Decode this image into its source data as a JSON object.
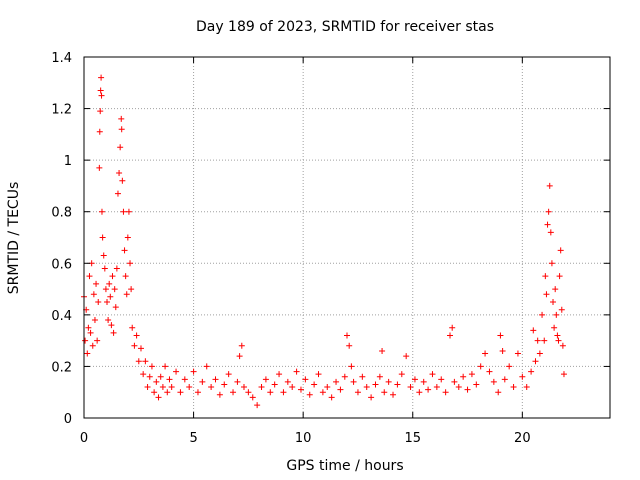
{
  "chart_data": {
    "type": "scatter",
    "title": "Day 189 of 2023, SRMTID for receiver stas",
    "xlabel": "GPS time / hours",
    "ylabel": "SRMTID / TECUs",
    "xlim": [
      0,
      24
    ],
    "ylim": [
      0,
      1.4
    ],
    "xticks": [
      0,
      5,
      10,
      15,
      20
    ],
    "xtick_labels": [
      "0",
      "5",
      "10",
      "15",
      "20"
    ],
    "yticks": [
      0,
      0.2,
      0.4,
      0.6,
      0.8,
      1,
      1.2,
      1.4
    ],
    "ytick_labels": [
      "0",
      "0.2",
      "0.4",
      "0.6",
      "0.8",
      "1",
      "1.2",
      "1.4"
    ],
    "grid": true,
    "marker": "+",
    "series": [
      {
        "name": "SRMTID",
        "color": "#ff0000",
        "points": [
          [
            0.0,
            0.47
          ],
          [
            0.05,
            0.3
          ],
          [
            0.1,
            0.42
          ],
          [
            0.15,
            0.25
          ],
          [
            0.2,
            0.35
          ],
          [
            0.25,
            0.55
          ],
          [
            0.3,
            0.33
          ],
          [
            0.35,
            0.6
          ],
          [
            0.4,
            0.28
          ],
          [
            0.45,
            0.48
          ],
          [
            0.5,
            0.38
          ],
          [
            0.55,
            0.52
          ],
          [
            0.6,
            0.3
          ],
          [
            0.65,
            0.45
          ],
          [
            0.7,
            0.97
          ],
          [
            0.72,
            1.11
          ],
          [
            0.74,
            1.19
          ],
          [
            0.76,
            1.27
          ],
          [
            0.78,
            1.32
          ],
          [
            0.8,
            1.25
          ],
          [
            0.82,
            0.8
          ],
          [
            0.85,
            0.7
          ],
          [
            0.9,
            0.63
          ],
          [
            0.95,
            0.58
          ],
          [
            1.0,
            0.5
          ],
          [
            1.05,
            0.45
          ],
          [
            1.1,
            0.38
          ],
          [
            1.15,
            0.52
          ],
          [
            1.2,
            0.47
          ],
          [
            1.25,
            0.36
          ],
          [
            1.3,
            0.55
          ],
          [
            1.35,
            0.33
          ],
          [
            1.4,
            0.5
          ],
          [
            1.45,
            0.43
          ],
          [
            1.5,
            0.58
          ],
          [
            1.55,
            0.87
          ],
          [
            1.6,
            0.95
          ],
          [
            1.65,
            1.05
          ],
          [
            1.7,
            1.16
          ],
          [
            1.72,
            1.12
          ],
          [
            1.75,
            0.92
          ],
          [
            1.8,
            0.8
          ],
          [
            1.85,
            0.65
          ],
          [
            1.9,
            0.55
          ],
          [
            1.95,
            0.48
          ],
          [
            2.0,
            0.7
          ],
          [
            2.05,
            0.8
          ],
          [
            2.1,
            0.6
          ],
          [
            2.15,
            0.5
          ],
          [
            2.2,
            0.35
          ],
          [
            2.3,
            0.28
          ],
          [
            2.4,
            0.32
          ],
          [
            2.5,
            0.22
          ],
          [
            2.6,
            0.27
          ],
          [
            2.7,
            0.17
          ],
          [
            2.8,
            0.22
          ],
          [
            2.9,
            0.12
          ],
          [
            3.0,
            0.16
          ],
          [
            3.1,
            0.2
          ],
          [
            3.2,
            0.1
          ],
          [
            3.3,
            0.14
          ],
          [
            3.4,
            0.08
          ],
          [
            3.5,
            0.16
          ],
          [
            3.6,
            0.12
          ],
          [
            3.7,
            0.2
          ],
          [
            3.8,
            0.1
          ],
          [
            3.9,
            0.15
          ],
          [
            4.0,
            0.12
          ],
          [
            4.2,
            0.18
          ],
          [
            4.4,
            0.1
          ],
          [
            4.6,
            0.15
          ],
          [
            4.8,
            0.12
          ],
          [
            5.0,
            0.18
          ],
          [
            5.2,
            0.1
          ],
          [
            5.4,
            0.14
          ],
          [
            5.6,
            0.2
          ],
          [
            5.8,
            0.12
          ],
          [
            6.0,
            0.15
          ],
          [
            6.2,
            0.09
          ],
          [
            6.4,
            0.13
          ],
          [
            6.6,
            0.17
          ],
          [
            6.8,
            0.1
          ],
          [
            7.0,
            0.14
          ],
          [
            7.1,
            0.24
          ],
          [
            7.2,
            0.28
          ],
          [
            7.3,
            0.12
          ],
          [
            7.5,
            0.1
          ],
          [
            7.7,
            0.08
          ],
          [
            7.9,
            0.05
          ],
          [
            8.1,
            0.12
          ],
          [
            8.3,
            0.15
          ],
          [
            8.5,
            0.1
          ],
          [
            8.7,
            0.13
          ],
          [
            8.9,
            0.17
          ],
          [
            9.1,
            0.1
          ],
          [
            9.3,
            0.14
          ],
          [
            9.5,
            0.12
          ],
          [
            9.7,
            0.18
          ],
          [
            9.9,
            0.11
          ],
          [
            10.1,
            0.15
          ],
          [
            10.3,
            0.09
          ],
          [
            10.5,
            0.13
          ],
          [
            10.7,
            0.17
          ],
          [
            10.9,
            0.1
          ],
          [
            11.1,
            0.12
          ],
          [
            11.3,
            0.08
          ],
          [
            11.5,
            0.14
          ],
          [
            11.7,
            0.11
          ],
          [
            11.9,
            0.16
          ],
          [
            12.0,
            0.32
          ],
          [
            12.1,
            0.28
          ],
          [
            12.2,
            0.2
          ],
          [
            12.3,
            0.14
          ],
          [
            12.5,
            0.1
          ],
          [
            12.7,
            0.16
          ],
          [
            12.9,
            0.12
          ],
          [
            13.1,
            0.08
          ],
          [
            13.3,
            0.13
          ],
          [
            13.5,
            0.16
          ],
          [
            13.6,
            0.26
          ],
          [
            13.7,
            0.1
          ],
          [
            13.9,
            0.14
          ],
          [
            14.1,
            0.09
          ],
          [
            14.3,
            0.13
          ],
          [
            14.5,
            0.17
          ],
          [
            14.7,
            0.24
          ],
          [
            14.9,
            0.12
          ],
          [
            15.1,
            0.15
          ],
          [
            15.3,
            0.1
          ],
          [
            15.5,
            0.14
          ],
          [
            15.7,
            0.11
          ],
          [
            15.9,
            0.17
          ],
          [
            16.1,
            0.12
          ],
          [
            16.3,
            0.15
          ],
          [
            16.5,
            0.1
          ],
          [
            16.7,
            0.32
          ],
          [
            16.8,
            0.35
          ],
          [
            16.9,
            0.14
          ],
          [
            17.1,
            0.12
          ],
          [
            17.3,
            0.16
          ],
          [
            17.5,
            0.11
          ],
          [
            17.7,
            0.17
          ],
          [
            17.9,
            0.13
          ],
          [
            18.1,
            0.2
          ],
          [
            18.3,
            0.25
          ],
          [
            18.5,
            0.18
          ],
          [
            18.7,
            0.14
          ],
          [
            18.9,
            0.1
          ],
          [
            19.0,
            0.32
          ],
          [
            19.1,
            0.26
          ],
          [
            19.2,
            0.15
          ],
          [
            19.4,
            0.2
          ],
          [
            19.6,
            0.12
          ],
          [
            19.8,
            0.25
          ],
          [
            20.0,
            0.16
          ],
          [
            20.2,
            0.12
          ],
          [
            20.4,
            0.18
          ],
          [
            20.5,
            0.34
          ],
          [
            20.6,
            0.22
          ],
          [
            20.7,
            0.3
          ],
          [
            20.8,
            0.25
          ],
          [
            20.9,
            0.4
          ],
          [
            21.0,
            0.3
          ],
          [
            21.05,
            0.55
          ],
          [
            21.1,
            0.48
          ],
          [
            21.15,
            0.75
          ],
          [
            21.2,
            0.8
          ],
          [
            21.25,
            0.9
          ],
          [
            21.3,
            0.72
          ],
          [
            21.35,
            0.6
          ],
          [
            21.4,
            0.45
          ],
          [
            21.45,
            0.35
          ],
          [
            21.5,
            0.5
          ],
          [
            21.55,
            0.4
          ],
          [
            21.6,
            0.32
          ],
          [
            21.65,
            0.3
          ],
          [
            21.7,
            0.55
          ],
          [
            21.75,
            0.65
          ],
          [
            21.8,
            0.42
          ],
          [
            21.85,
            0.28
          ],
          [
            21.9,
            0.17
          ]
        ]
      }
    ]
  }
}
